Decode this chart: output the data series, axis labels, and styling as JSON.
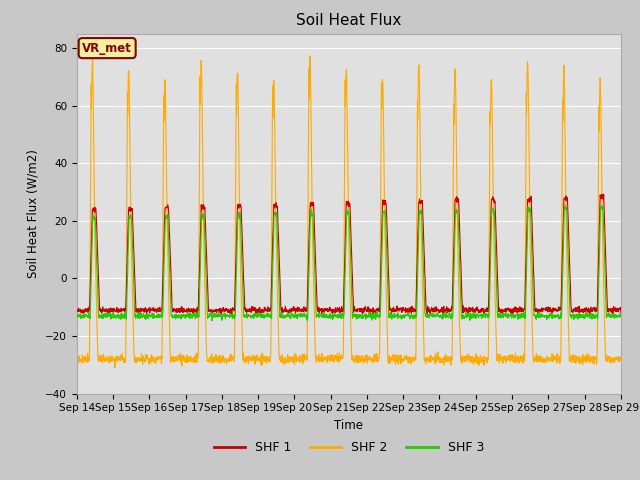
{
  "title": "Soil Heat Flux",
  "xlabel": "Time",
  "ylabel": "Soil Heat Flux (W/m2)",
  "ylim": [
    -40,
    85
  ],
  "yticks": [
    -40,
    -20,
    0,
    20,
    40,
    60,
    80
  ],
  "fig_bg_color": "#c8c8c8",
  "plot_bg_color": "#e0e0e0",
  "shf1_color": "#cc0000",
  "shf2_color": "#ffaa00",
  "shf3_color": "#22cc00",
  "legend_label": "VR_met",
  "series_labels": [
    "SHF 1",
    "SHF 2",
    "SHF 3"
  ],
  "n_days": 15,
  "x_tick_labels": [
    "Sep 14",
    "Sep 15",
    "Sep 16",
    "Sep 17",
    "Sep 18",
    "Sep 19",
    "Sep 20",
    "Sep 21",
    "Sep 22",
    "Sep 23",
    "Sep 24",
    "Sep 25",
    "Sep 26",
    "Sep 27",
    "Sep 28",
    "Sep 29"
  ]
}
